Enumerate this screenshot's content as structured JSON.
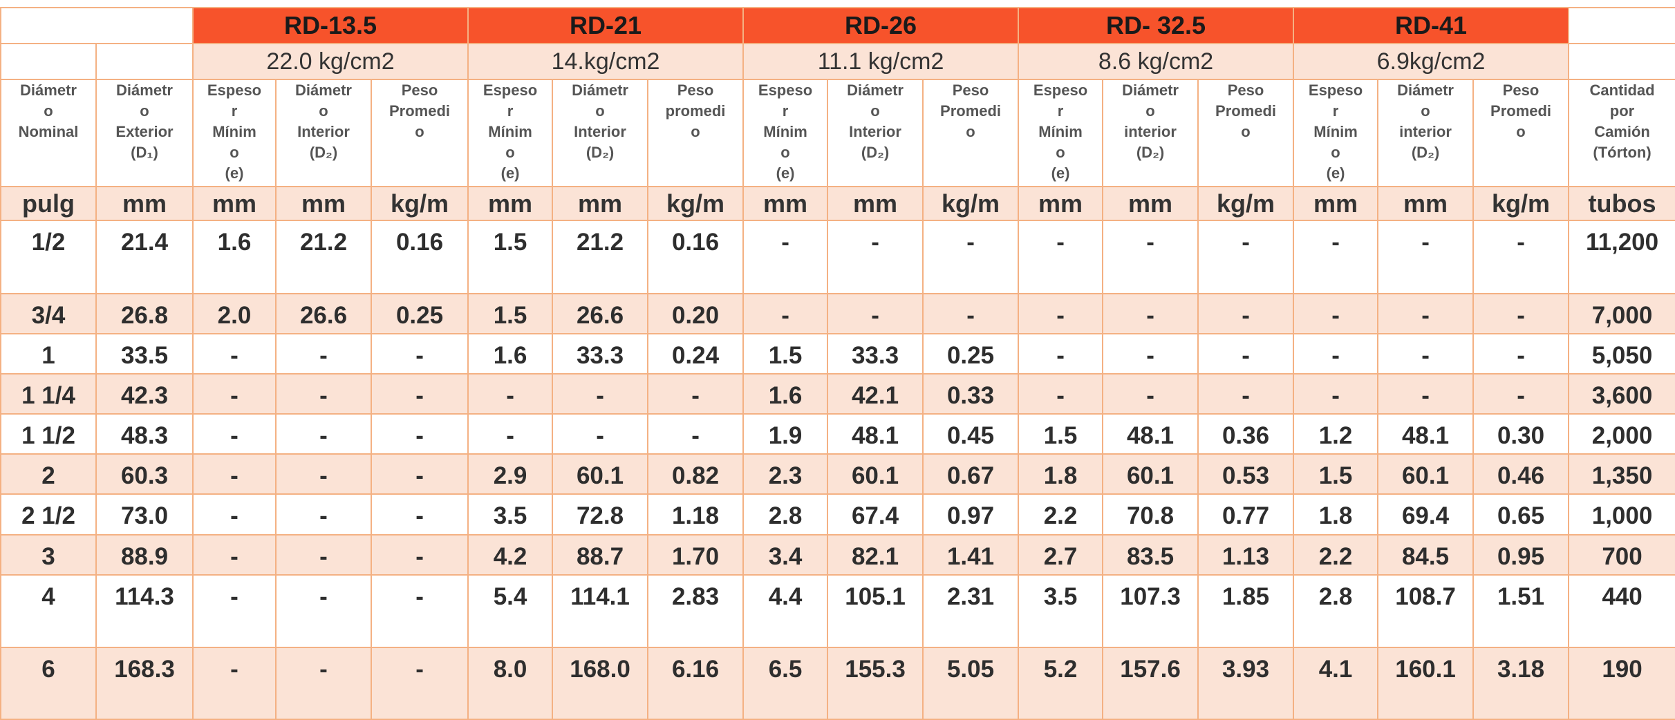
{
  "groups": [
    {
      "name": "RD-13.5",
      "pressure": "22.0 kg/cm2"
    },
    {
      "name": "RD-21",
      "pressure": "14.kg/cm2"
    },
    {
      "name": "RD-26",
      "pressure": "11.1 kg/cm2"
    },
    {
      "name": "RD- 32.5",
      "pressure": "8.6 kg/cm2"
    },
    {
      "name": "RD-41",
      "pressure": "6.9kg/cm2"
    }
  ],
  "columns": [
    "Diámetr\no\nNominal",
    "Diámetr\no\nExterior\n(D₁)",
    "Espeso\nr\nMínim\no\n(e)",
    "Diámetr\no\nInterior\n(D₂)",
    "Peso\nPromedi\no",
    "Espeso\nr\nMínim\no\n(e)",
    "Diámetr\no\nInterior\n(D₂)",
    "Peso\npromedi\no",
    "Espeso\nr\nMínim\no\n(e)",
    "Diámetr\no\nInterior\n(D₂)",
    "Peso\nPromedi\no",
    "Espeso\nr\nMínim\no\n(e)",
    "Diámetr\no\ninterior\n(D₂)",
    "Peso\nPromedi\no",
    "Espeso\nr\nMínim\no\n(e)",
    "Diámetr\no\ninterior\n(D₂)",
    "Peso\nPromedi\no",
    "Cantidad\npor\nCamión\n(Tórton)"
  ],
  "units": [
    "pulg",
    "mm",
    "mm",
    "mm",
    "kg/m",
    "mm",
    "mm",
    "kg/m",
    "mm",
    "mm",
    "kg/m",
    "mm",
    "mm",
    "kg/m",
    "mm",
    "mm",
    "kg/m",
    "tubos"
  ],
  "rows": [
    [
      "1/2",
      "21.4",
      "1.6",
      "21.2",
      "0.16",
      "1.5",
      "21.2",
      "0.16",
      "-",
      "-",
      "-",
      "-",
      "-",
      "-",
      "-",
      "-",
      "-",
      "11,200"
    ],
    [
      "3/4",
      "26.8",
      "2.0",
      "26.6",
      "0.25",
      "1.5",
      "26.6",
      "0.20",
      "-",
      "-",
      "-",
      "-",
      "-",
      "-",
      "-",
      "-",
      "-",
      "7,000"
    ],
    [
      "1",
      "33.5",
      "-",
      "-",
      "-",
      "1.6",
      "33.3",
      "0.24",
      "1.5",
      "33.3",
      "0.25",
      "-",
      "-",
      "-",
      "-",
      "-",
      "-",
      "5,050"
    ],
    [
      "1 1/4",
      "42.3",
      "-",
      "-",
      "-",
      "-",
      "-",
      "-",
      "1.6",
      "42.1",
      "0.33",
      "-",
      "-",
      "-",
      "-",
      "-",
      "-",
      "3,600"
    ],
    [
      "1 1/2",
      "48.3",
      "-",
      "-",
      "-",
      "-",
      "-",
      "-",
      "1.9",
      "48.1",
      "0.45",
      "1.5",
      "48.1",
      "0.36",
      "1.2",
      "48.1",
      "0.30",
      "2,000"
    ],
    [
      "2",
      "60.3",
      "-",
      "-",
      "-",
      "2.9",
      "60.1",
      "0.82",
      "2.3",
      "60.1",
      "0.67",
      "1.8",
      "60.1",
      "0.53",
      "1.5",
      "60.1",
      "0.46",
      "1,350"
    ],
    [
      "2 1/2",
      "73.0",
      "-",
      "-",
      "-",
      "3.5",
      "72.8",
      "1.18",
      "2.8",
      "67.4",
      "0.97",
      "2.2",
      "70.8",
      "0.77",
      "1.8",
      "69.4",
      "0.65",
      "1,000"
    ],
    [
      "3",
      "88.9",
      "-",
      "-",
      "-",
      "4.2",
      "88.7",
      "1.70",
      "3.4",
      "82.1",
      "1.41",
      "2.7",
      "83.5",
      "1.13",
      "2.2",
      "84.5",
      "0.95",
      "700"
    ],
    [
      "4",
      "114.3",
      "-",
      "-",
      "-",
      "5.4",
      "114.1",
      "2.83",
      "4.4",
      "105.1",
      "2.31",
      "3.5",
      "107.3",
      "1.85",
      "2.8",
      "108.7",
      "1.51",
      "440"
    ],
    [
      "6",
      "168.3",
      "-",
      "-",
      "-",
      "8.0",
      "168.0",
      "6.16",
      "6.5",
      "155.3",
      "5.05",
      "5.2",
      "157.6",
      "3.93",
      "4.1",
      "160.1",
      "3.18",
      "190"
    ]
  ]
}
